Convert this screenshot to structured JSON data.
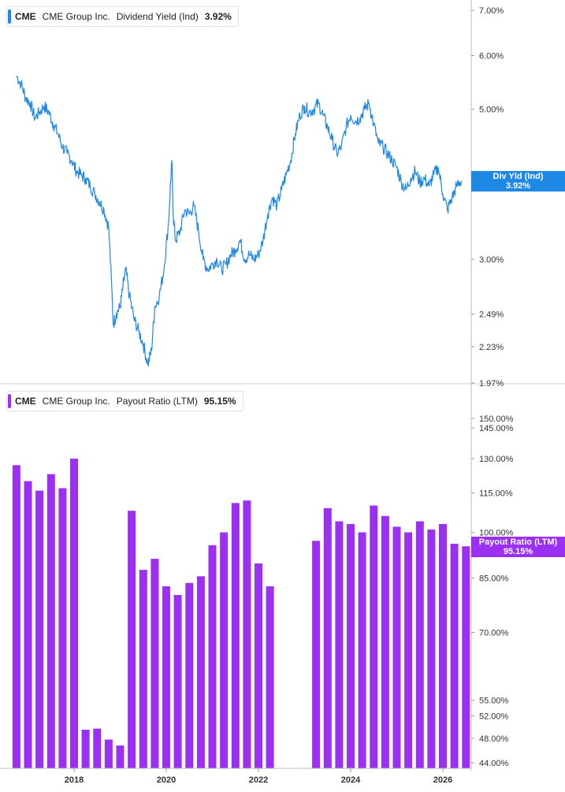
{
  "top_panel": {
    "legend": {
      "symbol": "CME",
      "company": "CME Group Inc.",
      "metric": "Dividend Yield (Ind)",
      "value": "3.92%",
      "color": "#1e88e5"
    },
    "badge": {
      "label": "Div Yld (Ind)",
      "value": "3.92%"
    }
  },
  "bottom_panel": {
    "legend": {
      "symbol": "CME",
      "company": "CME Group Inc.",
      "metric": "Payout Ratio (LTM)",
      "value": "95.15%",
      "color": "#9b30f2"
    },
    "badge": {
      "label": "Payout Ratio (LTM)",
      "value": "95.15%"
    }
  },
  "chart_data": [
    {
      "type": "line",
      "series": [
        {
          "name": "Dividend Yield (Ind)",
          "color": "#1e88e5"
        }
      ],
      "x_ticks": [
        "2018",
        "2020",
        "2022",
        "2024",
        "2026"
      ],
      "x": [
        2016.75,
        2016.85,
        2016.95,
        2017.05,
        2017.15,
        2017.25,
        2017.35,
        2017.45,
        2017.55,
        2017.65,
        2017.75,
        2017.85,
        2017.95,
        2018.05,
        2018.15,
        2018.25,
        2018.35,
        2018.45,
        2018.55,
        2018.65,
        2018.75,
        2018.85,
        2018.92,
        2019.0,
        2019.05,
        2019.12,
        2019.2,
        2019.3,
        2019.4,
        2019.5,
        2019.6,
        2019.68,
        2019.75,
        2019.85,
        2019.95,
        2020.05,
        2020.12,
        2020.15,
        2020.2,
        2020.3,
        2020.4,
        2020.5,
        2020.6,
        2020.7,
        2020.8,
        2020.9,
        2021.0,
        2021.1,
        2021.2,
        2021.3,
        2021.4,
        2021.5,
        2021.6,
        2021.7,
        2021.8,
        2021.9,
        2022.0,
        2022.1,
        2022.2,
        2022.3,
        2022.4,
        2022.5,
        2022.6,
        2022.7,
        2022.8,
        2022.9,
        2023.0,
        2023.1,
        2023.2,
        2023.3,
        2023.4,
        2023.5,
        2023.6,
        2023.7,
        2023.8,
        2023.9,
        2024.0,
        2024.1,
        2024.2,
        2024.3,
        2024.4,
        2024.5,
        2024.6,
        2024.7,
        2024.8,
        2024.9,
        2025.0,
        2025.1,
        2025.2,
        2025.3,
        2025.4,
        2025.5,
        2025.6,
        2025.7,
        2025.8,
        2025.9,
        2026.0,
        2026.1,
        2026.2,
        2026.3,
        2026.4
      ],
      "values": [
        5.6,
        5.45,
        5.2,
        5.1,
        4.85,
        4.95,
        5.05,
        4.95,
        4.75,
        4.6,
        4.4,
        4.3,
        4.2,
        4.05,
        4.0,
        3.95,
        3.85,
        3.75,
        3.65,
        3.55,
        3.35,
        2.4,
        2.5,
        2.55,
        2.7,
        2.9,
        2.65,
        2.45,
        2.35,
        2.25,
        2.1,
        2.2,
        2.55,
        2.65,
        2.9,
        3.4,
        4.2,
        3.5,
        3.2,
        3.3,
        3.55,
        3.5,
        3.6,
        3.3,
        3.0,
        2.9,
        2.95,
        3.0,
        2.9,
        2.95,
        3.05,
        3.1,
        3.2,
        3.0,
        3.05,
        3.0,
        3.05,
        3.2,
        3.5,
        3.7,
        3.6,
        3.8,
        4.0,
        4.2,
        4.6,
        4.9,
        5.05,
        4.95,
        5.0,
        5.1,
        4.9,
        4.7,
        4.5,
        4.3,
        4.4,
        4.7,
        4.9,
        4.8,
        4.85,
        5.0,
        5.1,
        4.75,
        4.45,
        4.4,
        4.3,
        4.2,
        4.1,
        3.9,
        3.8,
        3.95,
        4.05,
        3.9,
        3.95,
        3.85,
        4.0,
        4.1,
        3.75,
        3.55,
        3.7,
        3.85,
        3.92
      ],
      "y_ticks": [
        "7.00%",
        "6.00%",
        "5.00%",
        "3.00%",
        "2.49%",
        "2.23%",
        "1.97%"
      ],
      "ylim": [
        1.97,
        7.2
      ],
      "y_scale": "log",
      "grid": false
    },
    {
      "type": "bar",
      "series": [
        {
          "name": "Payout Ratio (LTM)",
          "color": "#9b30f2"
        }
      ],
      "x_ticks": [
        "2018",
        "2020",
        "2022",
        "2024",
        "2026"
      ],
      "x": [
        2016.75,
        2017.0,
        2017.25,
        2017.5,
        2017.75,
        2018.0,
        2018.25,
        2018.5,
        2018.75,
        2019.0,
        2019.25,
        2019.5,
        2019.75,
        2020.0,
        2020.25,
        2020.5,
        2020.75,
        2021.0,
        2021.25,
        2021.5,
        2021.75,
        2022.0,
        2022.25,
        2022.5,
        2022.75,
        2023.0,
        2023.25,
        2023.5,
        2023.75,
        2024.0,
        2024.25,
        2024.5,
        2024.75,
        2025.0,
        2025.25,
        2025.5,
        2025.75,
        2026.0,
        2026.25,
        2026.5
      ],
      "values": [
        127,
        120,
        116,
        123,
        117,
        130,
        49.5,
        49.7,
        47.8,
        46.8,
        108,
        87.5,
        91,
        82.5,
        80,
        83.5,
        85.5,
        95.5,
        100,
        111,
        112,
        89.5,
        82.5,
        null,
        null,
        null,
        97,
        109,
        104,
        103,
        100,
        110,
        106,
        102,
        100,
        104,
        101,
        103,
        96,
        95.15
      ],
      "y_ticks": [
        "150.00%",
        "145.00%",
        "130.00%",
        "115.00%",
        "100.00%",
        "85.00%",
        "70.00%",
        "55.00%",
        "52.00%",
        "48.00%",
        "44.00%"
      ],
      "ylim": [
        44,
        155
      ],
      "y_scale": "log",
      "grid": false
    }
  ]
}
